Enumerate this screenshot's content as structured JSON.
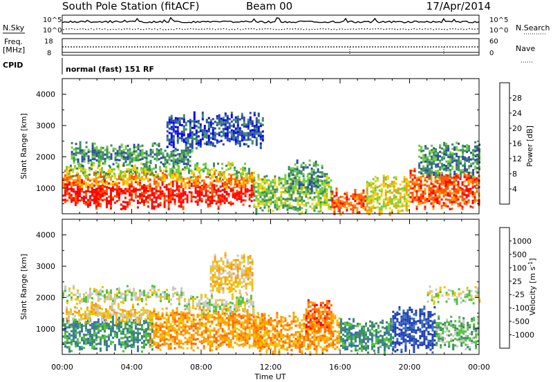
{
  "header": {
    "station": "South Pole Station (fitACF)",
    "beam": "Beam 00",
    "date": "17/Apr/2014"
  },
  "noise_panel": {
    "left_label": "N.Sky",
    "right_label": "N.Search",
    "ticks_left": [
      "10^5",
      "10^0"
    ],
    "ticks_right": [
      "10^5",
      "10^0"
    ]
  },
  "freq_panel": {
    "left_label_1": "Freq.",
    "left_label_2": "[MHz]",
    "right_label": "Nave",
    "ticks_left": [
      "18",
      "8"
    ],
    "ticks_right": [
      "60",
      "0"
    ]
  },
  "cpid": {
    "label": "CPID",
    "text": "normal (fast) 151 RF"
  },
  "x_axis": {
    "tick_labels": [
      "00:00",
      "04:00",
      "08:00",
      "12:00",
      "16:00",
      "20:00",
      "00:00"
    ],
    "label": "Time UT"
  },
  "colors": {
    "power": [
      "#0000ff",
      "#2c4da6",
      "#3a8c62",
      "#6fce3a",
      "#f2d000",
      "#ff9900",
      "#ff5500",
      "#ff0000"
    ],
    "velocity": [
      "#1f3fb8",
      "#3a6fb8",
      "#3a8c62",
      "#4fc23a",
      "#c8c8c8",
      "#f2c300",
      "#ff9900",
      "#ff6600",
      "#ff0000"
    ]
  },
  "chart_data": [
    {
      "type": "heatmap",
      "quantity": "power",
      "xlabel": "",
      "ylabel": "Slant Range [km]",
      "ytick_labels": [
        "1000",
        "2000",
        "3000",
        "4000"
      ],
      "xlim_hours": [
        0,
        24
      ],
      "ylim_km": [
        180,
        4500
      ],
      "colorbar_label": "Power [dB]",
      "colorbar_tick_labels": [
        "4",
        "8",
        "12",
        "16",
        "20",
        "24",
        "28"
      ],
      "echo_regions": [
        {
          "t0": 0.0,
          "t1": 5.0,
          "r0": 450,
          "r1": 1150,
          "level": 7
        },
        {
          "t0": 5.0,
          "t1": 11.0,
          "r0": 450,
          "r1": 1150,
          "level": 7
        },
        {
          "t0": 0.0,
          "t1": 11.0,
          "r0": 1150,
          "r1": 1450,
          "level": 5
        },
        {
          "t0": 0.2,
          "t1": 10.8,
          "r0": 1450,
          "r1": 1700,
          "level": 3
        },
        {
          "t0": 0.5,
          "t1": 7.5,
          "r0": 1800,
          "r1": 2350,
          "level": 2
        },
        {
          "t0": 6.0,
          "t1": 11.5,
          "r0": 2400,
          "r1": 3300,
          "level": 1
        },
        {
          "t0": 11.0,
          "t1": 15.5,
          "r0": 300,
          "r1": 1350,
          "level": 3
        },
        {
          "t0": 13.0,
          "t1": 15.0,
          "r0": 1000,
          "r1": 1800,
          "level": 2
        },
        {
          "t0": 15.5,
          "t1": 17.5,
          "r0": 300,
          "r1": 900,
          "level": 6
        },
        {
          "t0": 17.5,
          "t1": 20.0,
          "r0": 300,
          "r1": 1300,
          "level": 4
        },
        {
          "t0": 20.0,
          "t1": 24.0,
          "r0": 500,
          "r1": 1500,
          "level": 6
        },
        {
          "t0": 20.5,
          "t1": 24.0,
          "r0": 1500,
          "r1": 2350,
          "level": 2
        }
      ]
    },
    {
      "type": "heatmap",
      "quantity": "velocity",
      "xlabel": "Time UT",
      "ylabel": "Slant Range [km]",
      "ytick_labels": [
        "1000",
        "2000",
        "3000",
        "4000"
      ],
      "xlim_hours": [
        0,
        24
      ],
      "ylim_km": [
        180,
        4500
      ],
      "colorbar_label": "Velocity [m s^-1]",
      "colorbar_tick_labels": [
        "1000",
        "500",
        "100",
        "25",
        "-25",
        "-100",
        "-500",
        "-1000"
      ],
      "echo_regions": [
        {
          "t0": 0.0,
          "t1": 5.2,
          "r0": 450,
          "r1": 1300,
          "level": 2
        },
        {
          "t0": 0.0,
          "t1": 7.0,
          "r0": 1900,
          "r1": 2250,
          "level": 4
        },
        {
          "t0": 0.2,
          "t1": 5.0,
          "r0": 1300,
          "r1": 1700,
          "level": 5
        },
        {
          "t0": 5.0,
          "t1": 11.5,
          "r0": 450,
          "r1": 1600,
          "level": 6
        },
        {
          "t0": 7.0,
          "t1": 11.0,
          "r0": 1600,
          "r1": 2000,
          "level": 4
        },
        {
          "t0": 8.5,
          "t1": 11.0,
          "r0": 2300,
          "r1": 3300,
          "level": 5
        },
        {
          "t0": 11.0,
          "t1": 16.0,
          "r0": 300,
          "r1": 1400,
          "level": 6
        },
        {
          "t0": 14.0,
          "t1": 15.5,
          "r0": 900,
          "r1": 1800,
          "level": 7
        },
        {
          "t0": 16.0,
          "t1": 19.0,
          "r0": 300,
          "r1": 1200,
          "level": 2
        },
        {
          "t0": 19.0,
          "t1": 21.5,
          "r0": 400,
          "r1": 1600,
          "level": 0
        },
        {
          "t0": 21.5,
          "t1": 24.0,
          "r0": 500,
          "r1": 1300,
          "level": 3
        },
        {
          "t0": 21.0,
          "t1": 24.0,
          "r0": 1900,
          "r1": 2250,
          "level": 4
        }
      ]
    }
  ]
}
